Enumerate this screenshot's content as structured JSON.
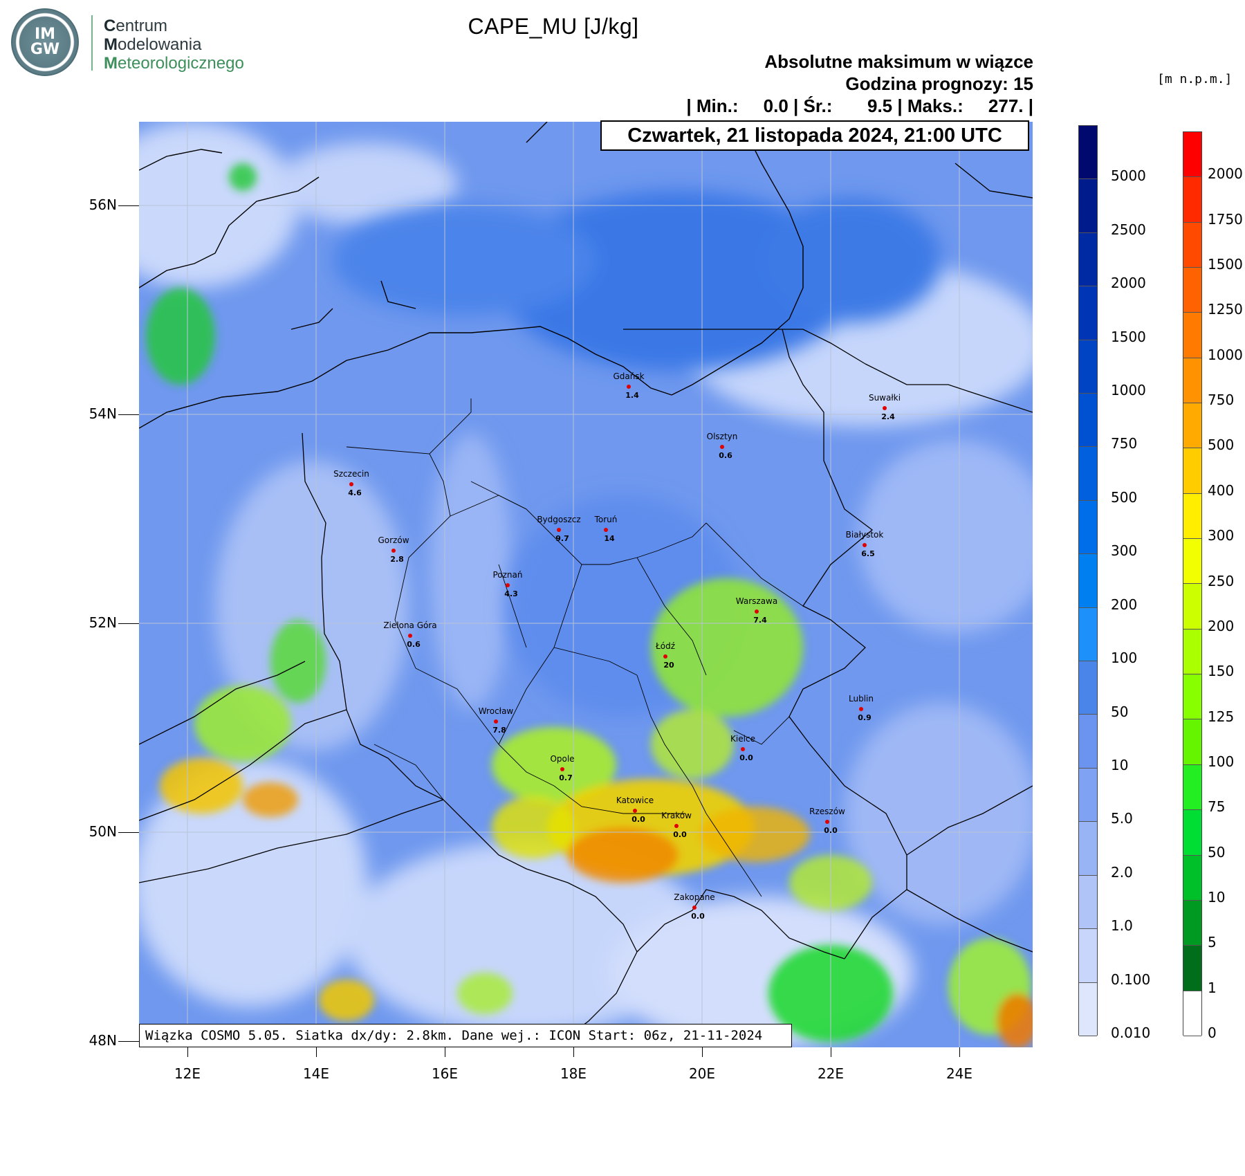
{
  "logo": {
    "badge_top": "IM",
    "badge_bottom": "GW",
    "org_line1_initial": "C",
    "org_line1_rest": "entrum",
    "org_line2_initial": "M",
    "org_line2_rest": "odelowania",
    "org_line3_initial": "M",
    "org_line3_rest": "eteorologicznego"
  },
  "header": {
    "title": "CAPE_MU [J/kg]",
    "subtitle1": "Absolutne maksimum w wiązce",
    "subtitle2": "Godzina prognozy: 15",
    "stats": "| Min.:     0.0 | Śr.:       9.5 | Maks.:     277. |",
    "elevation_unit": "[m n.p.m.]"
  },
  "map": {
    "valid_time": "Czwartek, 21 listopada 2024, 21:00 UTC",
    "footer": "Wiązka COSMO 5.05. Siatka dx/dy: 2.8km. Dane wej.: ICON Start: 06z, 21-11-2024",
    "lat_ticks": [
      "56N",
      "54N",
      "52N",
      "50N",
      "48N"
    ],
    "lon_ticks": [
      "12E",
      "14E",
      "16E",
      "18E",
      "20E",
      "22E",
      "24E"
    ],
    "cities": [
      {
        "name": "Gdańsk",
        "value": "1.4"
      },
      {
        "name": "Suwałki",
        "value": "2.4"
      },
      {
        "name": "Olsztyn",
        "value": "0.6"
      },
      {
        "name": "Szczecin",
        "value": "4.6"
      },
      {
        "name": "Bydgoszcz",
        "value": "9.7"
      },
      {
        "name": "Toruń",
        "value": "14"
      },
      {
        "name": "Białystok",
        "value": "6.5"
      },
      {
        "name": "Gorzów",
        "value": "2.8"
      },
      {
        "name": "Poznań",
        "value": "4.3"
      },
      {
        "name": "Warszawa",
        "value": "7.4"
      },
      {
        "name": "Zielona Góra",
        "value": "0.6"
      },
      {
        "name": "Łódź",
        "value": "20"
      },
      {
        "name": "Lublin",
        "value": "0.9"
      },
      {
        "name": "Wrocław",
        "value": "7.8"
      },
      {
        "name": "Kielce",
        "value": "0.0"
      },
      {
        "name": "Opole",
        "value": "0.7"
      },
      {
        "name": "Katowice",
        "value": "0.0"
      },
      {
        "name": "Kraków",
        "value": "0.0"
      },
      {
        "name": "Rzeszów",
        "value": "0.0"
      },
      {
        "name": "Zakopane",
        "value": "0.0"
      }
    ]
  },
  "cape_colorbar": {
    "labels": [
      "5000",
      "2500",
      "2000",
      "1500",
      "1000",
      "750",
      "500",
      "300",
      "200",
      "100",
      "50",
      "10",
      "5.0",
      "2.0",
      "1.0",
      "0.100",
      "0.010"
    ],
    "colors": [
      "#000a6e",
      "#001c8c",
      "#002aa3",
      "#0036b5",
      "#0044c4",
      "#0050d2",
      "#0060de",
      "#006ee8",
      "#0080f0",
      "#1e90fa",
      "#4a86ea",
      "#6a94f0",
      "#7fa2f2",
      "#98b4f5",
      "#b0c4f8",
      "#c8d6fb",
      "#dde6fd"
    ]
  },
  "elev_colorbar": {
    "labels": [
      "2000",
      "1750",
      "1500",
      "1250",
      "1000",
      "750",
      "500",
      "400",
      "300",
      "250",
      "200",
      "150",
      "125",
      "100",
      "75",
      "50",
      "10",
      "5",
      "1",
      "0"
    ],
    "colors": [
      "#ff0000",
      "#ff2a00",
      "#ff4a00",
      "#ff6200",
      "#ff7a00",
      "#ff9200",
      "#ffaa00",
      "#ffcc00",
      "#ffee00",
      "#f2ff00",
      "#ccff00",
      "#aaff00",
      "#88ff00",
      "#66f500",
      "#22ee22",
      "#00dd33",
      "#00c02a",
      "#009a22",
      "#006e1a",
      "#ffffff"
    ]
  }
}
